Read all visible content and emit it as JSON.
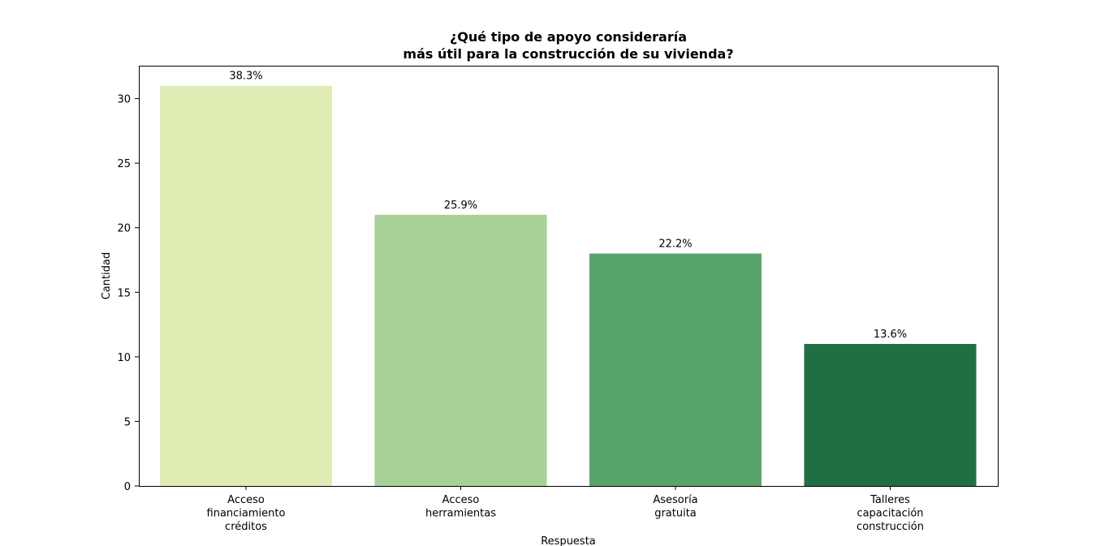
{
  "chart_data": {
    "type": "bar",
    "title_lines": [
      "¿Qué tipo de apoyo consideraría",
      "más útil para la construcción de su vivienda?"
    ],
    "xlabel": "Respuesta",
    "ylabel": "Cantidad",
    "ylim": [
      0,
      32.55
    ],
    "yticks": [
      0,
      5,
      10,
      15,
      20,
      25,
      30
    ],
    "categories": [
      [
        "Acceso",
        "financiamiento",
        "créditos"
      ],
      [
        "Acceso",
        "herramientas"
      ],
      [
        "Asesoría",
        "gratuita"
      ],
      [
        "Talleres",
        "capacitación",
        "construcción"
      ]
    ],
    "values": [
      31,
      21,
      18,
      11
    ],
    "data_labels": [
      "38.3%",
      "25.9%",
      "22.2%",
      "13.6%"
    ],
    "colors": [
      "#dfedb5",
      "#a6d095",
      "#58a46a",
      "#226e43"
    ],
    "grid": false,
    "legend": false
  }
}
